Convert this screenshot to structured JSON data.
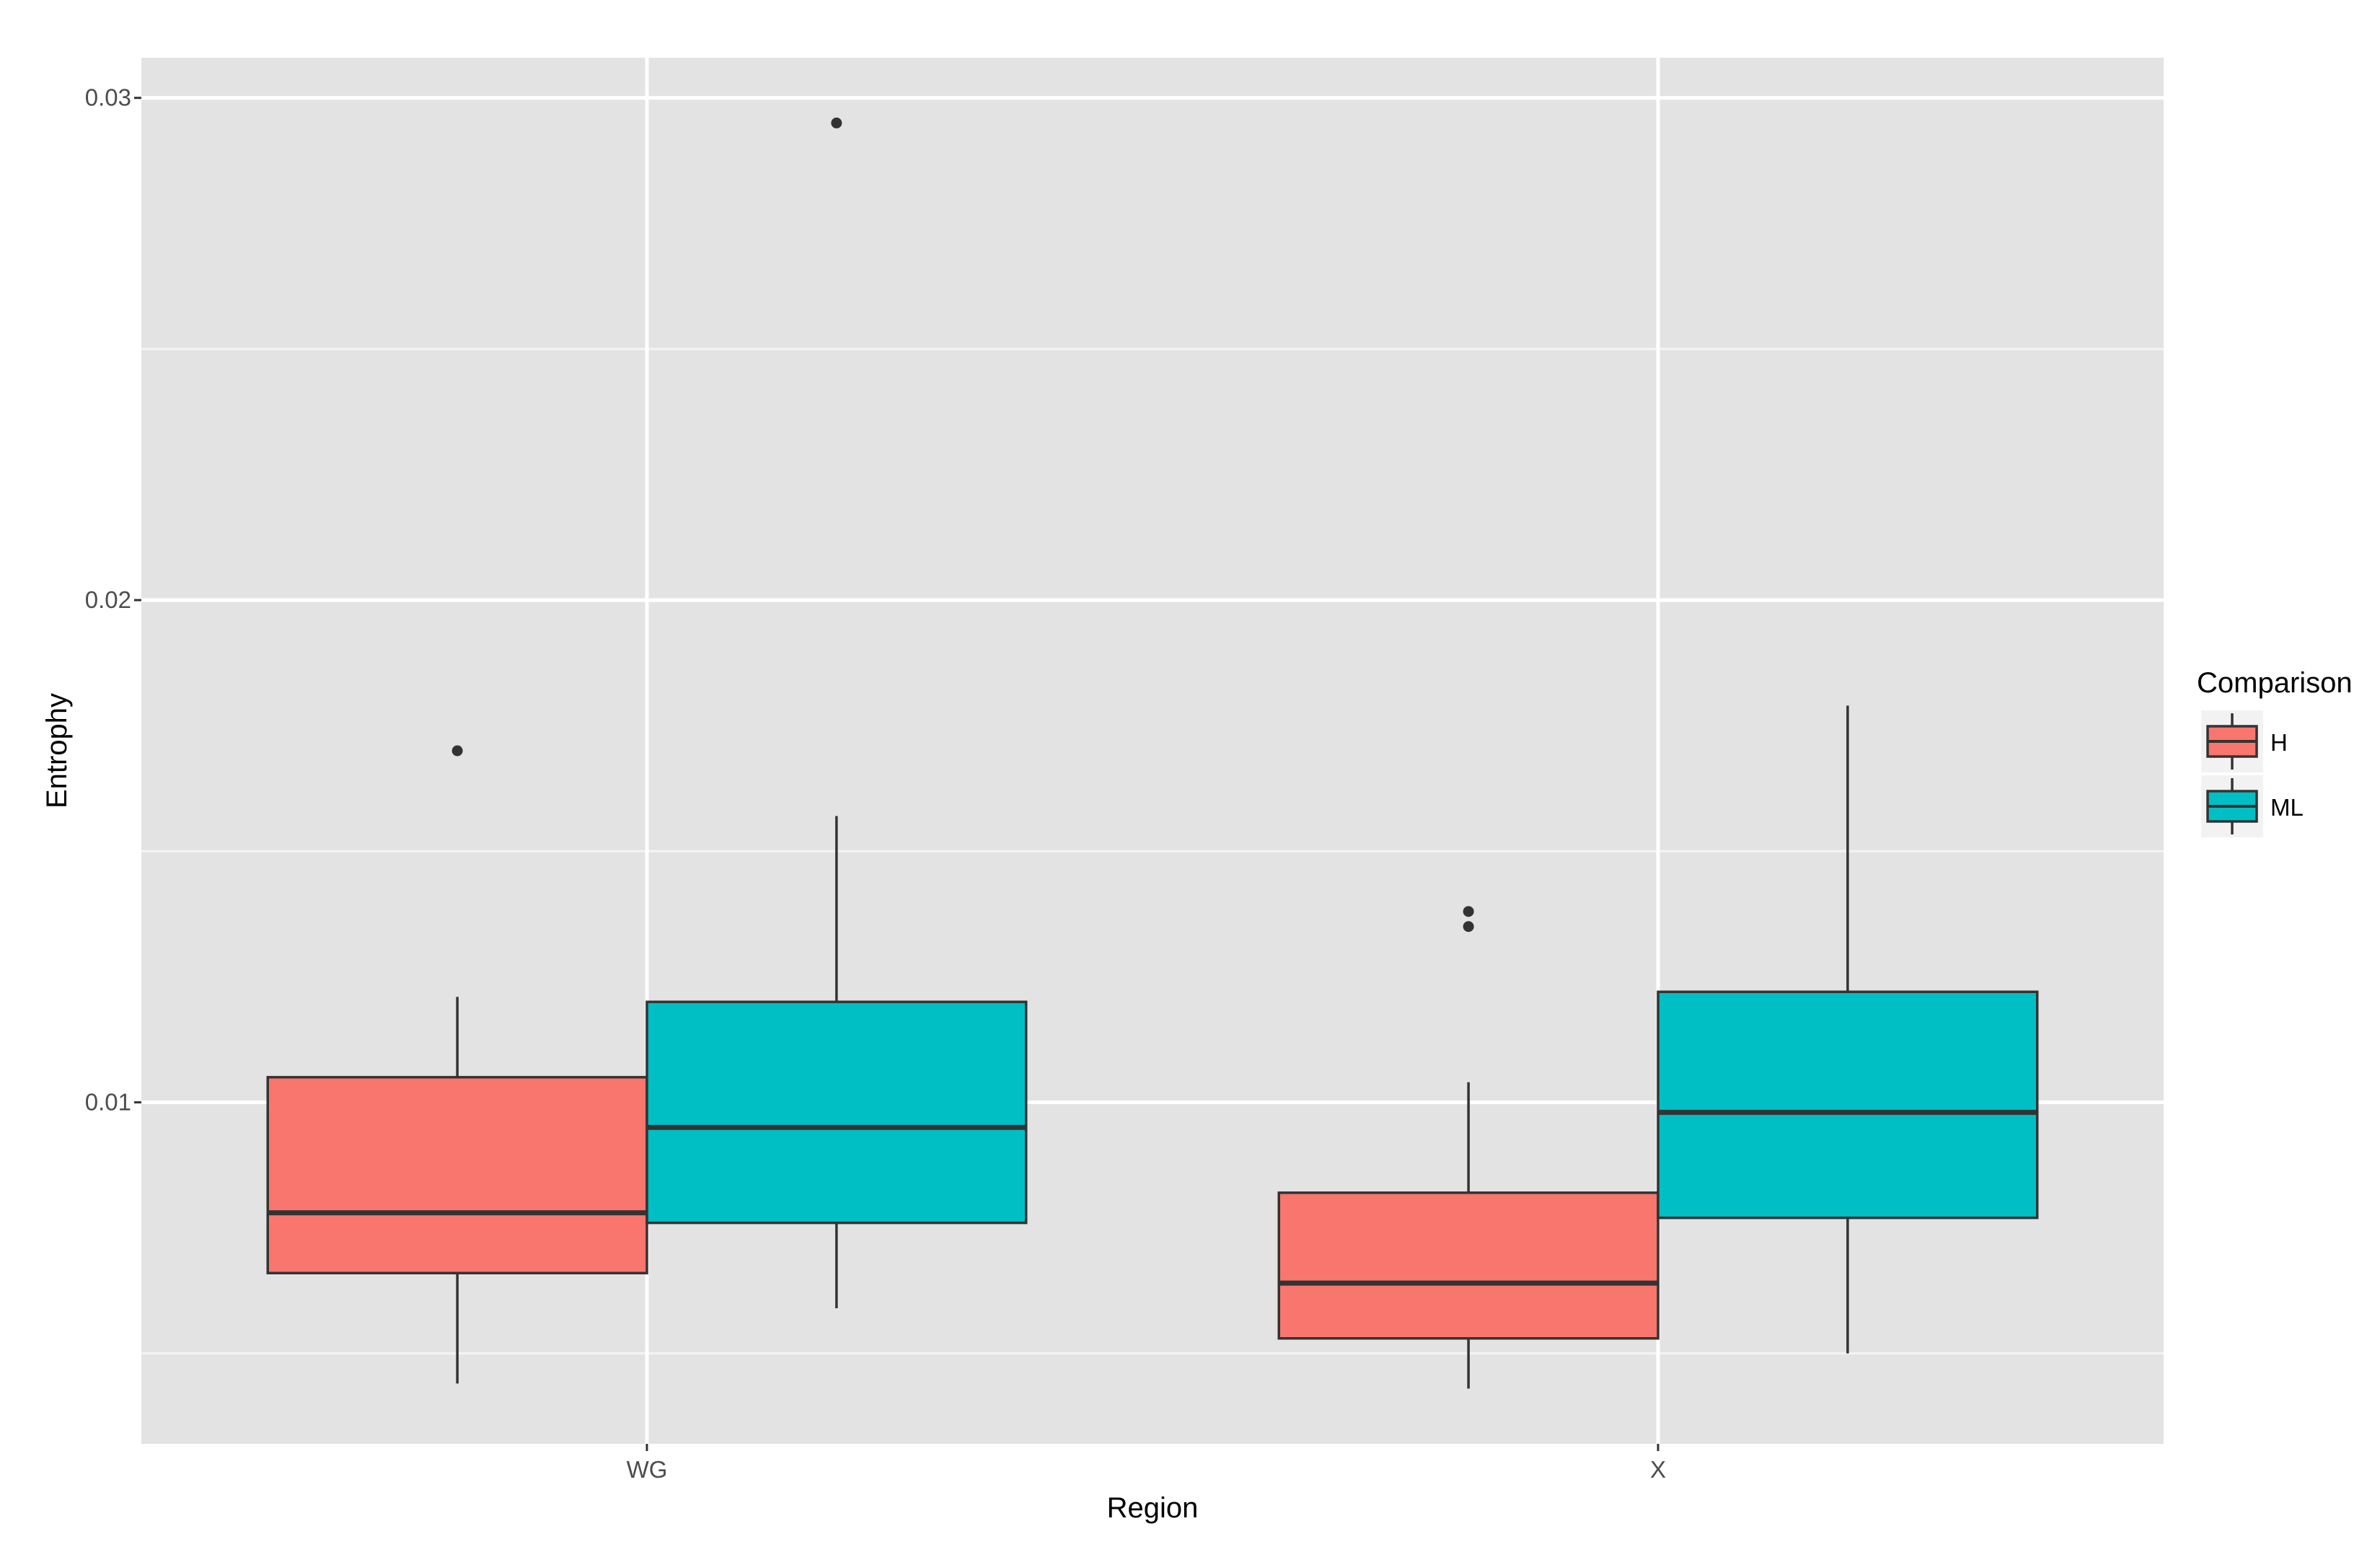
{
  "chart_data": {
    "type": "boxplot",
    "xlabel": "Region",
    "ylabel": "Entrophy",
    "categories": [
      "WG",
      "X"
    ],
    "ylim": [
      0.0032,
      0.0308
    ],
    "yticks": [
      0.01,
      0.02,
      0.03
    ],
    "ytick_labels": [
      "0.01",
      "0.02",
      "0.03"
    ],
    "grid": true,
    "legend": {
      "title": "Comparison",
      "position": "right",
      "entries": [
        "H",
        "ML"
      ]
    },
    "series": [
      {
        "name": "H",
        "color": "#F8766D",
        "boxes": [
          {
            "category": "WG",
            "whisker_low": 0.0044,
            "q1": 0.0066,
            "median": 0.0078,
            "q3": 0.0105,
            "whisker_high": 0.0121,
            "outliers": [
              0.017
            ]
          },
          {
            "category": "X",
            "whisker_low": 0.0043,
            "q1": 0.0053,
            "median": 0.0064,
            "q3": 0.0082,
            "whisker_high": 0.0104,
            "outliers": [
              0.0135,
              0.0138
            ]
          }
        ]
      },
      {
        "name": "ML",
        "color": "#00BFC4",
        "boxes": [
          {
            "category": "WG",
            "whisker_low": 0.0059,
            "q1": 0.0076,
            "median": 0.0095,
            "q3": 0.012,
            "whisker_high": 0.0157,
            "outliers": [
              0.0295
            ]
          },
          {
            "category": "X",
            "whisker_low": 0.005,
            "q1": 0.0077,
            "median": 0.0098,
            "q3": 0.0122,
            "whisker_high": 0.0179,
            "outliers": []
          }
        ]
      }
    ]
  }
}
